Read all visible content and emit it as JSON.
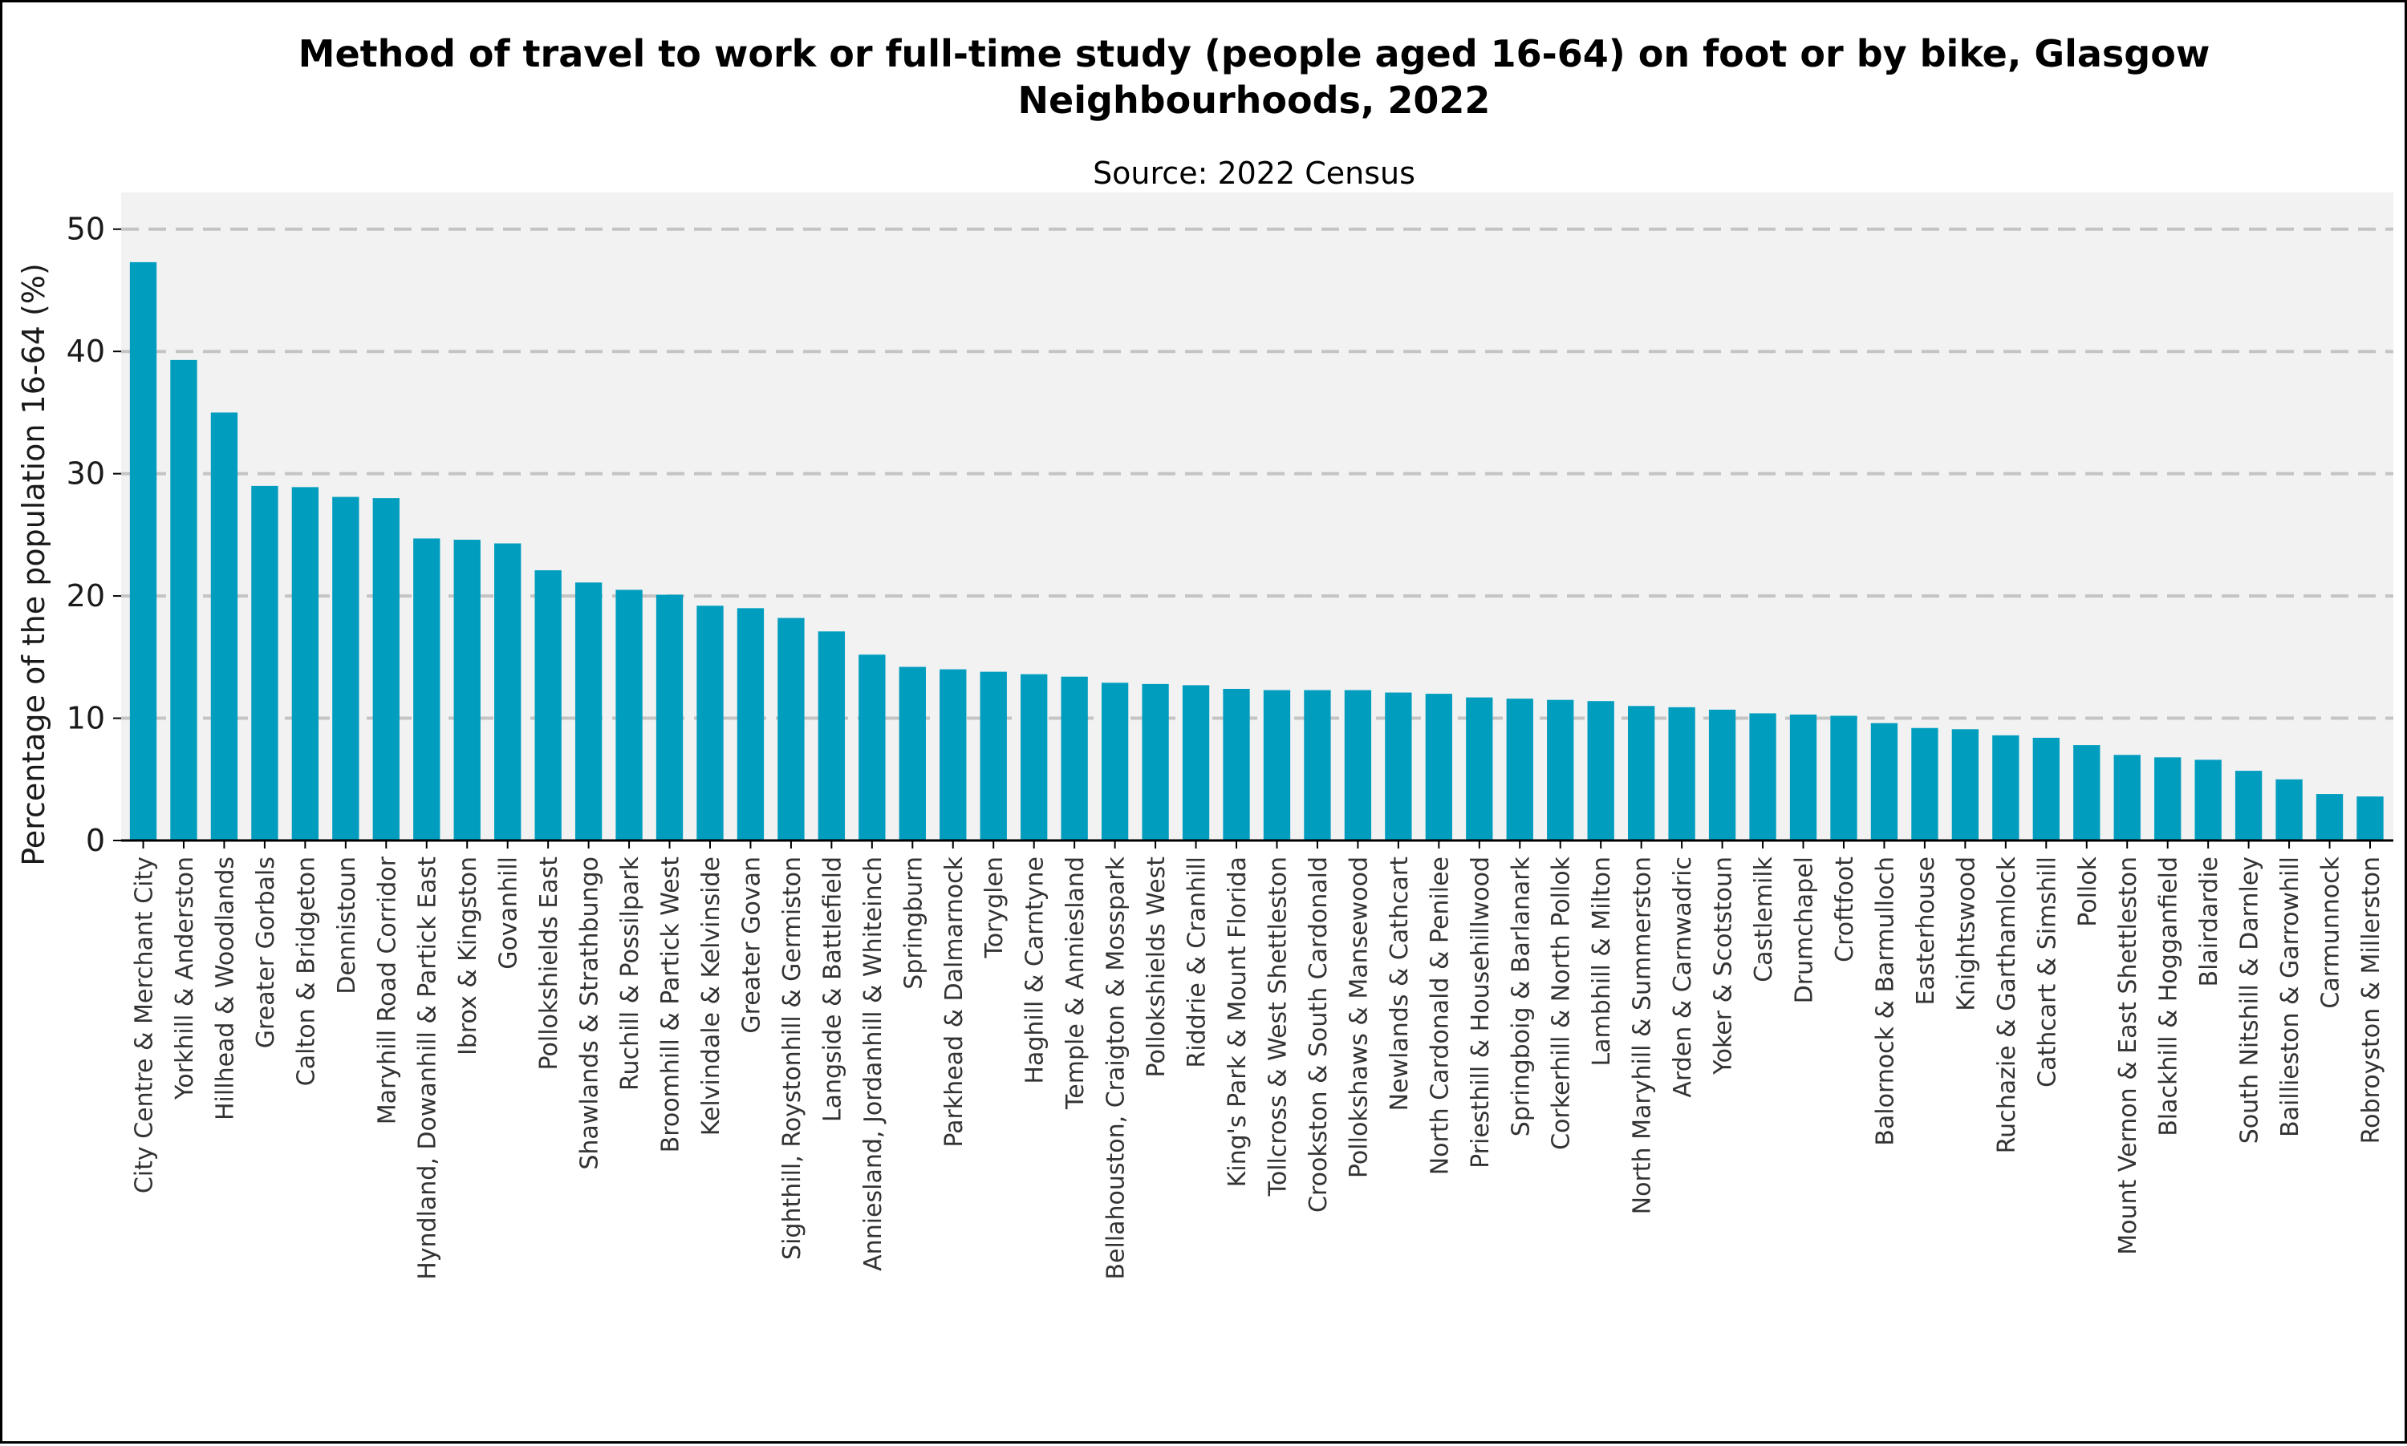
{
  "chart_data": {
    "type": "bar",
    "title_line1": "Method of travel to work or full-time study (people aged 16-64) on foot or by bike, Glasgow",
    "title_line2": "Neighbourhoods, 2022",
    "subtitle": "Source: 2022 Census",
    "xlabel": "",
    "ylabel": "Percentage of the population 16-64 (%)",
    "ylim": [
      0,
      53
    ],
    "yticks": [
      0,
      10,
      20,
      30,
      40,
      50
    ],
    "grid": true,
    "bar_color": "#009dbf",
    "plot_background": "#f2f2f2",
    "gridline_color": "#c4c4c4",
    "categories": [
      "City Centre & Merchant City",
      "Yorkhill & Anderston",
      "Hillhead & Woodlands",
      "Greater Gorbals",
      "Calton & Bridgeton",
      "Dennistoun",
      "Maryhill Road Corridor",
      "Hyndland, Dowanhill & Partick East",
      "Ibrox & Kingston",
      "Govanhill",
      "Pollokshields East",
      "Shawlands & Strathbungo",
      "Ruchill & Possilpark",
      "Broomhill & Partick West",
      "Kelvindale & Kelvinside",
      "Greater Govan",
      "Sighthill, Roystonhill & Germiston",
      "Langside & Battlefield",
      "Anniesland, Jordanhill & Whiteinch",
      "Springburn",
      "Parkhead & Dalmarnock",
      "Toryglen",
      "Haghill & Carntyne",
      "Temple & Anniesland",
      "Bellahouston, Craigton & Mosspark",
      "Pollokshields West",
      "Riddrie & Cranhill",
      "King's Park & Mount Florida",
      "Tollcross & West Shettleston",
      "Crookston & South Cardonald",
      "Pollokshaws & Mansewood",
      "Newlands & Cathcart",
      "North Cardonald & Penilee",
      "Priesthill & Househillwood",
      "Springboig & Barlanark",
      "Corkerhill & North Pollok",
      "Lambhill & Milton",
      "North Maryhill & Summerston",
      "Arden & Carnwadric",
      "Yoker & Scotstoun",
      "Castlemilk",
      "Drumchapel",
      "Croftfoot",
      "Balornock & Barmulloch",
      "Easterhouse",
      "Knightswood",
      "Ruchazie & Garthamlock",
      "Cathcart & Simshill",
      "Pollok",
      "Mount Vernon & East Shettleston",
      "Blackhill & Hogganfield",
      "Blairdardie",
      "South Nitshill & Darnley",
      "Baillieston & Garrowhill",
      "Carmunnock",
      "Robroyston & Millerston"
    ],
    "values": [
      47.3,
      39.3,
      35.0,
      29.0,
      28.9,
      28.1,
      28.0,
      24.7,
      24.6,
      24.3,
      22.1,
      21.1,
      20.5,
      20.1,
      19.2,
      19.0,
      18.2,
      17.1,
      15.2,
      14.2,
      14.0,
      13.8,
      13.6,
      13.4,
      12.9,
      12.8,
      12.7,
      12.4,
      12.3,
      12.3,
      12.3,
      12.1,
      12.0,
      11.7,
      11.6,
      11.5,
      11.4,
      11.0,
      10.9,
      10.7,
      10.4,
      10.3,
      10.2,
      9.6,
      9.2,
      9.1,
      8.6,
      8.4,
      7.8,
      7.0,
      6.8,
      6.6,
      5.7,
      5.0,
      3.8,
      3.6
    ]
  }
}
